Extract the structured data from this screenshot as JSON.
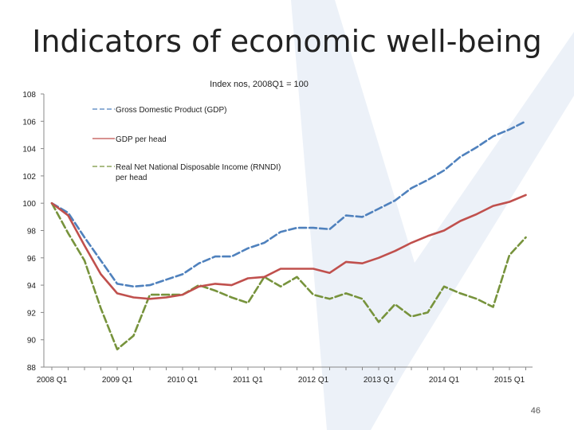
{
  "slide": {
    "title": "Indicators of economic well-being",
    "page_number": "46"
  },
  "colors": {
    "background_mark": "#dde6f2",
    "gdp": "#4f81bd",
    "gdp_per_head": "#c0504d",
    "rnndi": "#77933c",
    "axis": "#888888",
    "text": "#222222"
  },
  "chart_data": {
    "type": "line",
    "title": "Index nos, 2008Q1 = 100",
    "xlabel": "",
    "ylabel": "",
    "ylim": [
      88,
      108
    ],
    "yticks": [
      88,
      90,
      92,
      94,
      96,
      98,
      100,
      102,
      104,
      106,
      108
    ],
    "xticks": [
      "2008 Q1",
      "2009 Q1",
      "2010 Q1",
      "2011 Q1",
      "2012 Q1",
      "2013 Q1",
      "2014 Q1",
      "2015 Q1"
    ],
    "x": [
      "2008 Q1",
      "2008 Q2",
      "2008 Q3",
      "2008 Q4",
      "2009 Q1",
      "2009 Q2",
      "2009 Q3",
      "2009 Q4",
      "2010 Q1",
      "2010 Q2",
      "2010 Q3",
      "2010 Q4",
      "2011 Q1",
      "2011 Q2",
      "2011 Q3",
      "2011 Q4",
      "2012 Q1",
      "2012 Q2",
      "2012 Q3",
      "2012 Q4",
      "2013 Q1",
      "2013 Q2",
      "2013 Q3",
      "2013 Q4",
      "2014 Q1",
      "2014 Q2",
      "2014 Q3",
      "2014 Q4",
      "2015 Q1",
      "2015 Q2"
    ],
    "grid": false,
    "legend_position": "top-center",
    "series": [
      {
        "name": "Gross Domestic Product (GDP)",
        "color": "#4f81bd",
        "dash": "dashed",
        "values": [
          100.0,
          99.3,
          97.5,
          95.8,
          94.1,
          93.9,
          94.0,
          94.4,
          94.8,
          95.6,
          96.1,
          96.1,
          96.7,
          97.1,
          97.9,
          98.2,
          98.2,
          98.1,
          99.1,
          99.0,
          99.6,
          100.2,
          101.1,
          101.7,
          102.4,
          103.4,
          104.1,
          104.9,
          105.4,
          106.0
        ]
      },
      {
        "name": "GDP per head",
        "color": "#c0504d",
        "dash": "solid",
        "values": [
          100.0,
          99.1,
          96.9,
          94.8,
          93.4,
          93.1,
          93.0,
          93.1,
          93.3,
          93.9,
          94.1,
          94.0,
          94.5,
          94.6,
          95.2,
          95.2,
          95.2,
          94.9,
          95.7,
          95.6,
          96.0,
          96.5,
          97.1,
          97.6,
          98.0,
          98.7,
          99.2,
          99.8,
          100.1,
          100.6
        ]
      },
      {
        "name": "Real Net National Disposable Income (RNNDI) per head",
        "color": "#77933c",
        "dash": "dashed",
        "values": [
          100.0,
          97.8,
          95.8,
          92.3,
          89.3,
          90.3,
          93.3,
          93.3,
          93.3,
          94.0,
          93.6,
          93.1,
          92.7,
          94.6,
          93.9,
          94.6,
          93.3,
          93.0,
          93.4,
          93.0,
          91.3,
          92.6,
          91.7,
          92.0,
          93.9,
          93.4,
          93.0,
          92.4,
          96.2,
          97.5
        ]
      }
    ]
  }
}
